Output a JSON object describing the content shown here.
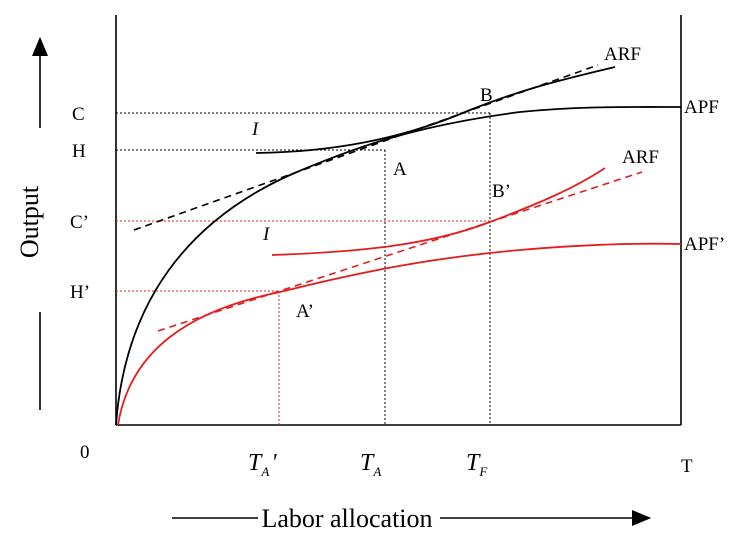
{
  "diagram": {
    "x_axis": {
      "label": "Labor allocation",
      "origin_label": "0",
      "end_label": "T"
    },
    "y_axis": {
      "label": "Output"
    },
    "y_levels": {
      "C": "C",
      "H": "H",
      "C_prime": "C’",
      "H_prime": "H’"
    },
    "x_levels": {
      "TA_prime": {
        "main": "T",
        "sub": "A",
        "suffix": "'"
      },
      "TA": {
        "main": "T",
        "sub": "A"
      },
      "TF": {
        "main": "T",
        "sub": "F"
      }
    },
    "curves": {
      "apf": "APF",
      "apf_prime": "APF’",
      "arf_upper": "ARF",
      "arf_lower": "ARF",
      "indiff_upper": "I",
      "indiff_lower": "I"
    },
    "points": {
      "A": "A",
      "B": "B",
      "A_prime": "A’",
      "B_prime": "B’"
    },
    "colors": {
      "black_curves": "#000000",
      "red_curves": "#e31e1e"
    }
  }
}
